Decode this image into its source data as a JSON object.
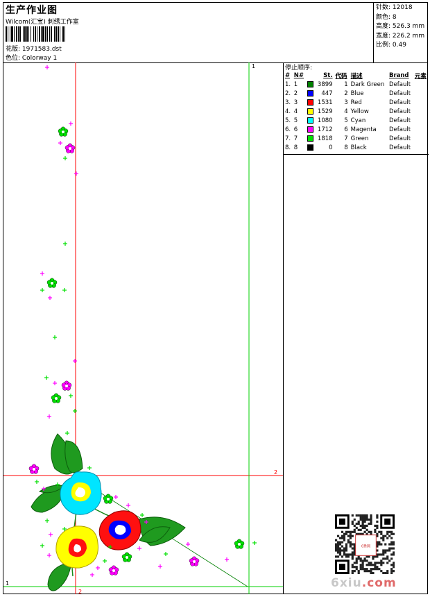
{
  "header": {
    "title": "生产作业图",
    "company": "Wilcom(汇宝) 刺绣工作室",
    "design": "花版: 1971583.dst",
    "colorway": "色位: Colorway 1"
  },
  "stats": [
    {
      "label": "针数:",
      "value": "12018"
    },
    {
      "label": "颜色:",
      "value": "8"
    },
    {
      "label": "高度:",
      "value": "526.3 mm"
    },
    {
      "label": "宽度:",
      "value": "226.2 mm"
    },
    {
      "label": "比例:",
      "value": "0.49"
    }
  ],
  "stop_sequence": {
    "title": "停止顺序:",
    "columns": [
      "#",
      "N#",
      "St.",
      "代码",
      "描述",
      "Brand",
      "元素"
    ],
    "rows": [
      {
        "num": "1.",
        "n": "1",
        "color": "#008000",
        "st": "3899",
        "code": "1",
        "desc": "Dark Green",
        "brand": "Default"
      },
      {
        "num": "2.",
        "n": "2",
        "color": "#0000ff",
        "st": "447",
        "code": "2",
        "desc": "Blue",
        "brand": "Default"
      },
      {
        "num": "3.",
        "n": "3",
        "color": "#ff0000",
        "st": "1531",
        "code": "3",
        "desc": "Red",
        "brand": "Default"
      },
      {
        "num": "4.",
        "n": "4",
        "color": "#ffff00",
        "st": "1529",
        "code": "4",
        "desc": "Yellow",
        "brand": "Default"
      },
      {
        "num": "5.",
        "n": "5",
        "color": "#00ffff",
        "st": "1080",
        "code": "5",
        "desc": "Cyan",
        "brand": "Default"
      },
      {
        "num": "6.",
        "n": "6",
        "color": "#ff00ff",
        "st": "1712",
        "code": "6",
        "desc": "Magenta",
        "brand": "Default"
      },
      {
        "num": "7.",
        "n": "7",
        "color": "#00e000",
        "st": "1818",
        "code": "7",
        "desc": "Green",
        "brand": "Default"
      },
      {
        "num": "8.",
        "n": "8",
        "color": "#000000",
        "st": "0",
        "code": "8",
        "desc": "Black",
        "brand": "Default"
      }
    ]
  },
  "guides": {
    "green_v": "1",
    "red_h": "2",
    "green_h": "1",
    "red_v": "2"
  },
  "watermark": {
    "main": "6xiu",
    "dot": ".com",
    "seal": "6秀网"
  }
}
